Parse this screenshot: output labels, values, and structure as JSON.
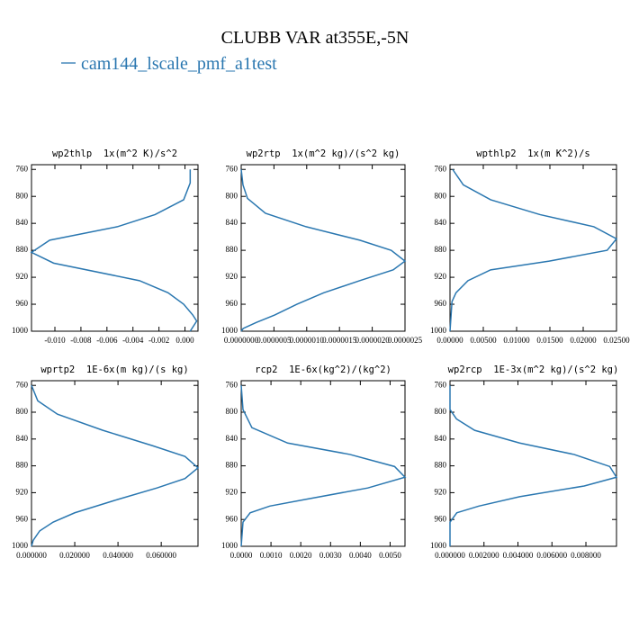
{
  "title": "CLUBB VAR at355E,-5N",
  "legend": {
    "label": "cam144_lscale_pmf_a1test",
    "color": "#2a77b0"
  },
  "chart_data": [
    {
      "type": "line",
      "title": "wp2thlp  1x(m^2 K)/s^2",
      "x": [
        0.0004,
        0.0004,
        -0.0001,
        -0.0023,
        -0.0052,
        -0.0104,
        -0.0118,
        -0.0101,
        -0.0035,
        -0.0013,
        -0.0001,
        0.0006,
        0.0009,
        0.0004
      ],
      "y": [
        760,
        780,
        805,
        827,
        845,
        865,
        883,
        899,
        925,
        943,
        960,
        976,
        985,
        1000
      ],
      "xlim": [
        -0.0118,
        0.001
      ],
      "xticks": [
        {
          "value": -0.01,
          "label": "-0.010"
        },
        -0.008,
        -0.006,
        -0.004,
        -0.002,
        {
          "value": 0,
          "label": "0.000"
        }
      ],
      "ylim": [
        753,
        1000
      ],
      "yticks": [
        760,
        800,
        840,
        880,
        920,
        960,
        1000
      ],
      "invert_y": true
    },
    {
      "type": "line",
      "title": "wp2rtp  1x(m^2 kg)/(s^2 kg)",
      "x": [
        0,
        2.7e-08,
        9.6e-08,
        3.7e-07,
        9.9e-07,
        1.81e-06,
        2.29e-06,
        2.5e-06,
        2.32e-06,
        1.81e-06,
        1.26e-06,
        8.5e-07,
        5.1e-07,
        2.3e-07,
        3e-08,
        0
      ],
      "y": [
        760,
        783,
        803,
        825,
        845,
        865,
        880,
        896,
        909,
        925,
        943,
        960,
        976,
        987,
        996,
        1000
      ],
      "xlim": [
        0,
        2.5e-06
      ],
      "xticks": [
        {
          "value": 0,
          "label": "0.0000000"
        },
        {
          "value": 5e-07,
          "label": "0.0000005"
        },
        {
          "value": 1e-06,
          "label": "0.0000010"
        },
        {
          "value": 1.5e-06,
          "label": "0.0000015"
        },
        {
          "value": 2e-06,
          "label": "0.0000020"
        },
        {
          "value": 2.5e-06,
          "label": "0.0000025"
        }
      ],
      "ylim": [
        753,
        1000
      ],
      "yticks": [
        760,
        800,
        840,
        880,
        920,
        960,
        1000
      ],
      "invert_y": true
    },
    {
      "type": "line",
      "title": "wpthlp2  1x(m K^2)/s",
      "x": [
        0.0004,
        0.002,
        0.0061,
        0.0135,
        0.0216,
        0.025,
        0.0236,
        0.0149,
        0.0061,
        0.0027,
        0.0009,
        0.0003,
        0
      ],
      "y": [
        760,
        783,
        805,
        827,
        845,
        863,
        880,
        896,
        909,
        925,
        943,
        956,
        1000
      ],
      "xlim": [
        0,
        0.025
      ],
      "xticks": [
        {
          "value": 0,
          "label": "0.00000"
        },
        {
          "value": 0.005,
          "label": "0.00500"
        },
        {
          "value": 0.01,
          "label": "0.01000"
        },
        {
          "value": 0.015,
          "label": "0.01500"
        },
        {
          "value": 0.02,
          "label": "0.02000"
        },
        {
          "value": 0.025,
          "label": "0.02500"
        }
      ],
      "ylim": [
        753,
        1000
      ],
      "yticks": [
        760,
        800,
        840,
        880,
        920,
        960,
        1000
      ],
      "invert_y": true
    },
    {
      "type": "line",
      "title": "wprtp2  1E-6x(m kg)/(s kg)",
      "x": [
        0,
        0.0029,
        0.012,
        0.033,
        0.056,
        0.071,
        0.077,
        0.071,
        0.058,
        0.04,
        0.02,
        0.01,
        0.0038,
        0.0008,
        0
      ],
      "y": [
        760,
        783,
        803,
        827,
        850,
        866,
        883,
        899,
        913,
        930,
        950,
        964,
        977,
        991,
        1000
      ],
      "xlim": [
        0,
        0.077
      ],
      "xticks": [
        {
          "value": 0,
          "label": "0.000000"
        },
        {
          "value": 0.02,
          "label": "0.020000"
        },
        {
          "value": 0.04,
          "label": "0.040000"
        },
        {
          "value": 0.06,
          "label": "0.060000"
        }
      ],
      "ylim": [
        753,
        1000
      ],
      "yticks": [
        760,
        800,
        840,
        880,
        920,
        960,
        1000
      ],
      "invert_y": true
    },
    {
      "type": "line",
      "title": "rcp2  1E-6x(kg^2)/(kg^2)",
      "x": [
        0,
        6e-05,
        0.00036,
        0.00156,
        0.00365,
        0.00515,
        0.0055,
        0.00425,
        0.00216,
        0.00096,
        0.0003,
        6e-05,
        0
      ],
      "y": [
        760,
        796,
        823,
        846,
        863,
        881,
        897,
        913,
        930,
        940,
        950,
        964,
        1000
      ],
      "xlim": [
        0,
        0.0055
      ],
      "xticks": [
        {
          "value": 0,
          "label": "0.0000"
        },
        {
          "value": 0.001,
          "label": "0.0010"
        },
        {
          "value": 0.002,
          "label": "0.0020"
        },
        {
          "value": 0.003,
          "label": "0.0030"
        },
        {
          "value": 0.004,
          "label": "0.0040"
        },
        {
          "value": 0.005,
          "label": "0.0050"
        }
      ],
      "ylim": [
        753,
        1000
      ],
      "yticks": [
        760,
        800,
        840,
        880,
        920,
        960,
        1000
      ],
      "invert_y": true
    },
    {
      "type": "line",
      "title": "wp2rcp  1E-3x(m^2 kg)/(s^2 kg)",
      "x": [
        0,
        0,
        0.00038,
        0.00145,
        0.0041,
        0.0073,
        0.0094,
        0.0098,
        0.0079,
        0.0041,
        0.0017,
        0.0004,
        0,
        0
      ],
      "y": [
        760,
        796,
        810,
        827,
        846,
        863,
        881,
        897,
        910,
        926,
        940,
        950,
        964,
        1000
      ],
      "xlim": [
        0,
        0.0098
      ],
      "xticks": [
        {
          "value": 0,
          "label": "0.000000"
        },
        {
          "value": 0.002,
          "label": "0.002000"
        },
        {
          "value": 0.004,
          "label": "0.004000"
        },
        {
          "value": 0.006,
          "label": "0.006000"
        },
        {
          "value": 0.008,
          "label": "0.008000"
        }
      ],
      "ylim": [
        753,
        1000
      ],
      "yticks": [
        760,
        800,
        840,
        880,
        920,
        960,
        1000
      ],
      "invert_y": true
    }
  ]
}
